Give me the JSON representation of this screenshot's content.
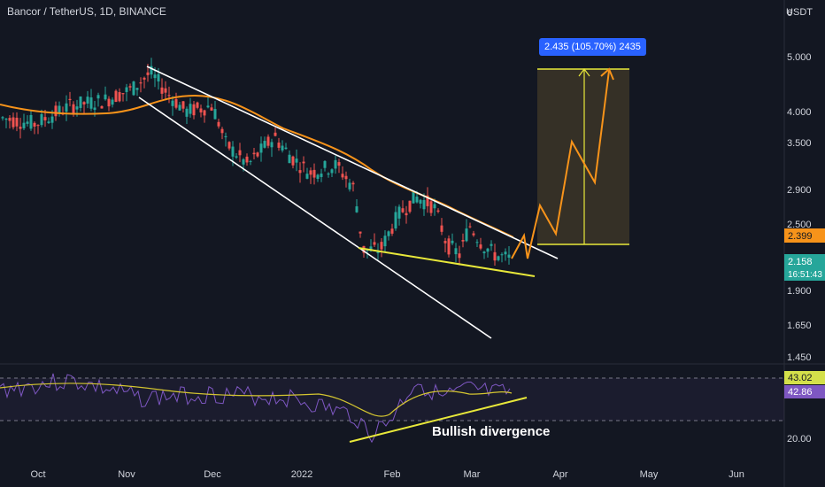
{
  "header": {
    "title": "Bancor / TetherUS, 1D, BINANCE",
    "currency": "USDT"
  },
  "colors": {
    "background": "#131722",
    "up": "#26a69a",
    "down": "#ef5350",
    "ma": "#f7931a",
    "channel": "#ffffff",
    "support": "#e8e83a",
    "projection": "#f7931a",
    "rsi": "#7e57c2",
    "rsi_ma": "#d4c530",
    "target_box": "#3a3327"
  },
  "price_axis": {
    "ticks": [
      "6",
      "5.000",
      "4.000",
      "3.500",
      "2.900",
      "2.500",
      "1.900",
      "1.650",
      "1.450"
    ],
    "current_price_tag": "2.399",
    "last_price_tag": "2.158",
    "countdown": "16:51:43"
  },
  "rsi_axis": {
    "ticks": [
      "20.00"
    ],
    "tag_upper": "43.02",
    "tag_lower": "42.86"
  },
  "time_axis": {
    "ticks": [
      "Oct",
      "Nov",
      "Dec",
      "2022",
      "Feb",
      "Mar",
      "Apr",
      "May",
      "Jun"
    ]
  },
  "target_label": "2.435 (105.70%) 2435",
  "annotation": "Bullish divergence",
  "chart_data": {
    "type": "candlestick",
    "title": "Bancor / TetherUS, 1D, BINANCE",
    "y_scale": "log",
    "y_axis_ticks": [
      6,
      5.0,
      4.0,
      3.5,
      2.9,
      2.5,
      1.9,
      1.65,
      1.45
    ],
    "x_axis_ticks": [
      "Oct",
      "Nov",
      "Dec",
      "2022",
      "Feb",
      "Mar",
      "Apr",
      "May",
      "Jun"
    ],
    "current_price": 2.399,
    "last_price": 2.158,
    "target_move": "2.435 (105.70%)",
    "rsi": {
      "upper_value": 43.02,
      "lower_value": 42.86,
      "level_tick": 20.0
    },
    "annotations": [
      "Bullish divergence"
    ]
  }
}
